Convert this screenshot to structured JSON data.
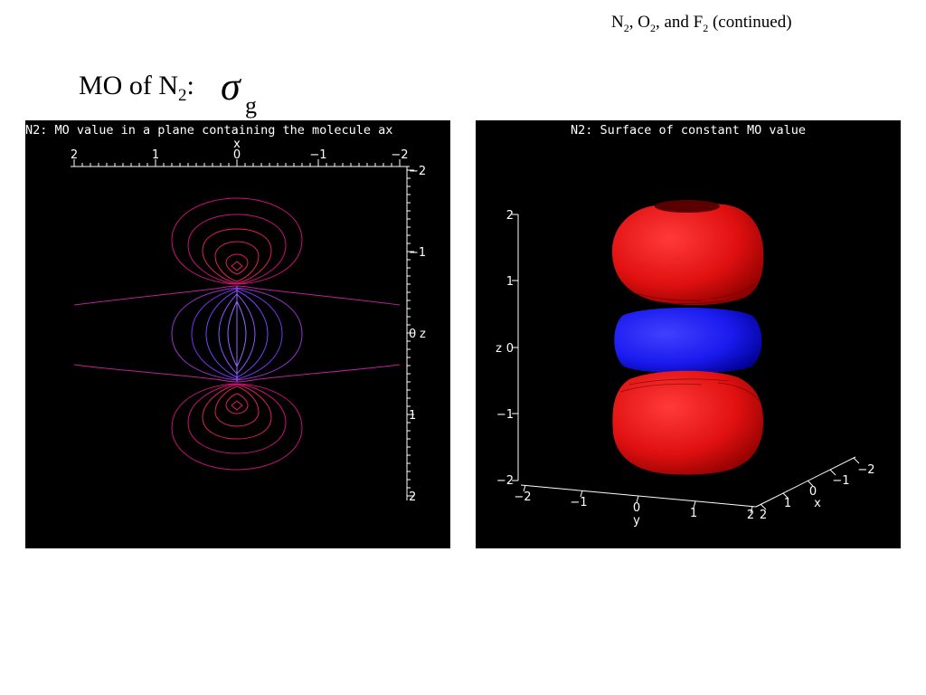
{
  "header": {
    "n": "N",
    "n_sub": "2",
    "sep1": ", ",
    "o": "O",
    "o_sub": "2",
    "sep2": ", and ",
    "f": "F",
    "f_sub": "2",
    "rest": " (continued)"
  },
  "title": {
    "prefix": "MO of N",
    "sub": "2",
    "suffix": ":",
    "symbol": "σ",
    "symbol_sub": "g"
  },
  "left_plot": {
    "title": "N2: MO value in a plane containing the molecule ax",
    "x_axis_label": "x",
    "x_ticks": [
      "2",
      "1",
      "0",
      "−1",
      "−2"
    ],
    "z_axis_label": "z",
    "z_ticks": [
      "−2",
      "−1",
      "0",
      "1",
      "2"
    ],
    "colors": {
      "outer": "#cc1177",
      "mid": "#dd2255",
      "inner": "#7733ee",
      "core": "#9955ff"
    }
  },
  "right_plot": {
    "title": "N2: Surface of constant MO value",
    "z_axis_label": "z",
    "z_ticks": [
      "2",
      "1",
      "0",
      "−1",
      "−2"
    ],
    "y_axis_label": "y",
    "y_ticks": [
      "−2",
      "−1",
      "0",
      "1",
      "2"
    ],
    "x_axis_label": "x",
    "x_ticks": [
      "2",
      "1",
      "0",
      "−1",
      "−2"
    ],
    "colors": {
      "positive_lobe": "#e01010",
      "negative_lobe": "#1a1aee"
    }
  }
}
